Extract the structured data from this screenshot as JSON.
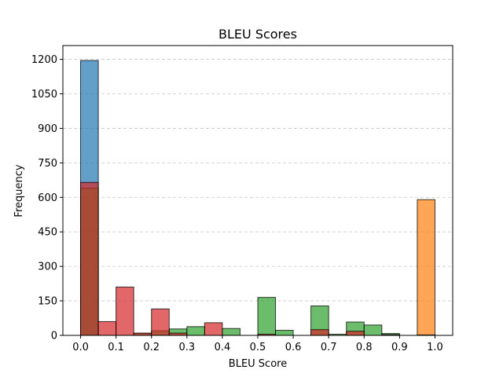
{
  "chart_data": {
    "type": "bar",
    "title": "BLEU Scores",
    "xlabel": "BLEU Score",
    "ylabel": "Frequency",
    "xlim": [
      -0.05,
      1.05
    ],
    "ylim": [
      0,
      1260
    ],
    "xticks": [
      "0.0",
      "0.1",
      "0.2",
      "0.3",
      "0.4",
      "0.5",
      "0.6",
      "0.7",
      "0.8",
      "0.9",
      "1.0"
    ],
    "yticks": [
      "0",
      "150",
      "300",
      "450",
      "600",
      "750",
      "900",
      "1050",
      "1200"
    ],
    "bin_edges": [
      0.0,
      0.05,
      0.1,
      0.15,
      0.2,
      0.25,
      0.3,
      0.35,
      0.4,
      0.45,
      0.5,
      0.55,
      0.6,
      0.65,
      0.7,
      0.75,
      0.8,
      0.85,
      0.9,
      0.95,
      1.0
    ],
    "grid": "horizontal dashed",
    "series": [
      {
        "color": "#1f77b4",
        "values": [
          1195,
          0,
          0,
          0,
          0,
          0,
          0,
          0,
          0,
          0,
          0,
          0,
          0,
          0,
          0,
          0,
          0,
          0,
          0,
          0
        ]
      },
      {
        "color": "#ff7f0e",
        "values": [
          0,
          0,
          0,
          0,
          0,
          0,
          0,
          0,
          0,
          0,
          0,
          0,
          0,
          0,
          0,
          0,
          0,
          0,
          0,
          590
        ]
      },
      {
        "color": "#2ca02c",
        "values": [
          640,
          0,
          0,
          8,
          20,
          28,
          38,
          0,
          30,
          0,
          165,
          22,
          0,
          128,
          5,
          58,
          45,
          8,
          0,
          2
        ]
      },
      {
        "color": "#d62728",
        "values": [
          665,
          60,
          210,
          10,
          115,
          10,
          0,
          55,
          0,
          0,
          5,
          0,
          0,
          25,
          0,
          18,
          0,
          3,
          0,
          0
        ]
      }
    ]
  }
}
